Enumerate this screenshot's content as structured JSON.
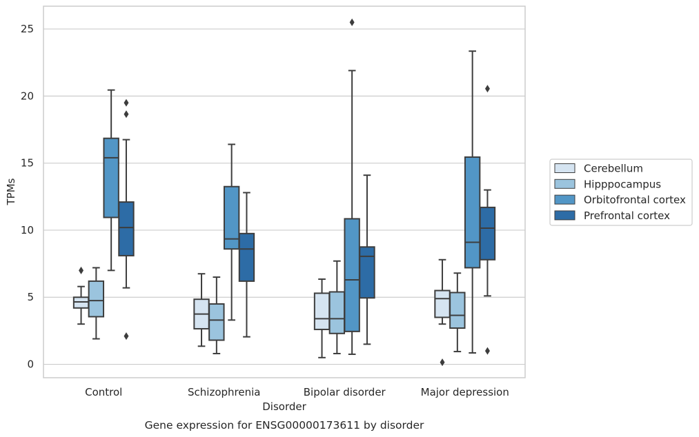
{
  "chart_data": {
    "type": "boxplot",
    "xlabel": "Disorder",
    "ylabel": "TPMs",
    "caption": "Gene expression for ENSG00000173611 by disorder",
    "ylim": [
      -1,
      26.7
    ],
    "yticks": [
      0,
      5,
      10,
      15,
      20,
      25
    ],
    "grid": true,
    "legend_position": "right",
    "categories": [
      "Control",
      "Schizophrenia",
      "Bipolar disorder",
      "Major depression"
    ],
    "series": [
      {
        "name": "Cerebellum",
        "color": "#d5e4f1",
        "boxes": [
          {
            "whislo": 3.0,
            "q1": 4.2,
            "med": 4.65,
            "q3": 5.0,
            "whishi": 5.8,
            "fliers": [
              7.0
            ]
          },
          {
            "whislo": 1.35,
            "q1": 2.65,
            "med": 3.75,
            "q3": 4.85,
            "whishi": 6.75,
            "fliers": []
          },
          {
            "whislo": 0.5,
            "q1": 2.6,
            "med": 3.4,
            "q3": 5.3,
            "whishi": 6.35,
            "fliers": []
          },
          {
            "whislo": 3.0,
            "q1": 3.5,
            "med": 4.9,
            "q3": 5.5,
            "whishi": 7.8,
            "fliers": [
              0.15
            ]
          }
        ]
      },
      {
        "name": "Hipppocampus",
        "color": "#9bc4de",
        "boxes": [
          {
            "whislo": 1.9,
            "q1": 3.55,
            "med": 4.75,
            "q3": 6.2,
            "whishi": 7.2,
            "fliers": []
          },
          {
            "whislo": 0.8,
            "q1": 1.8,
            "med": 3.3,
            "q3": 4.5,
            "whishi": 6.5,
            "fliers": []
          },
          {
            "whislo": 0.8,
            "q1": 2.3,
            "med": 3.4,
            "q3": 5.4,
            "whishi": 7.7,
            "fliers": []
          },
          {
            "whislo": 0.95,
            "q1": 2.7,
            "med": 3.65,
            "q3": 5.35,
            "whishi": 6.8,
            "fliers": []
          }
        ]
      },
      {
        "name": "Orbitofrontal cortex",
        "color": "#5296c6",
        "boxes": [
          {
            "whislo": 7.0,
            "q1": 10.95,
            "med": 15.4,
            "q3": 16.85,
            "whishi": 20.45,
            "fliers": []
          },
          {
            "whislo": 3.3,
            "q1": 8.6,
            "med": 9.35,
            "q3": 13.25,
            "whishi": 16.4,
            "fliers": []
          },
          {
            "whislo": 0.75,
            "q1": 2.45,
            "med": 6.3,
            "q3": 10.85,
            "whishi": 21.9,
            "fliers": [
              25.5
            ]
          },
          {
            "whislo": 0.85,
            "q1": 7.2,
            "med": 9.1,
            "q3": 15.45,
            "whishi": 23.35,
            "fliers": []
          }
        ]
      },
      {
        "name": "Prefrontal cortex",
        "color": "#2d6ca6",
        "boxes": [
          {
            "whislo": 5.7,
            "q1": 8.1,
            "med": 10.2,
            "q3": 12.1,
            "whishi": 16.75,
            "fliers": [
              19.5,
              18.65,
              2.1
            ]
          },
          {
            "whislo": 2.05,
            "q1": 6.2,
            "med": 8.6,
            "q3": 9.75,
            "whishi": 12.8,
            "fliers": []
          },
          {
            "whislo": 1.5,
            "q1": 4.95,
            "med": 8.05,
            "q3": 8.75,
            "whishi": 14.1,
            "fliers": []
          },
          {
            "whislo": 5.1,
            "q1": 7.8,
            "med": 10.15,
            "q3": 11.7,
            "whishi": 13.0,
            "fliers": [
              20.55,
              1.0
            ]
          }
        ]
      }
    ],
    "style": {
      "box_stroke": "#3d3d3d",
      "grid_color": "#cccccc",
      "axes_edge_color": "#cccccc",
      "legend_edge_color": "#cccccc"
    }
  }
}
